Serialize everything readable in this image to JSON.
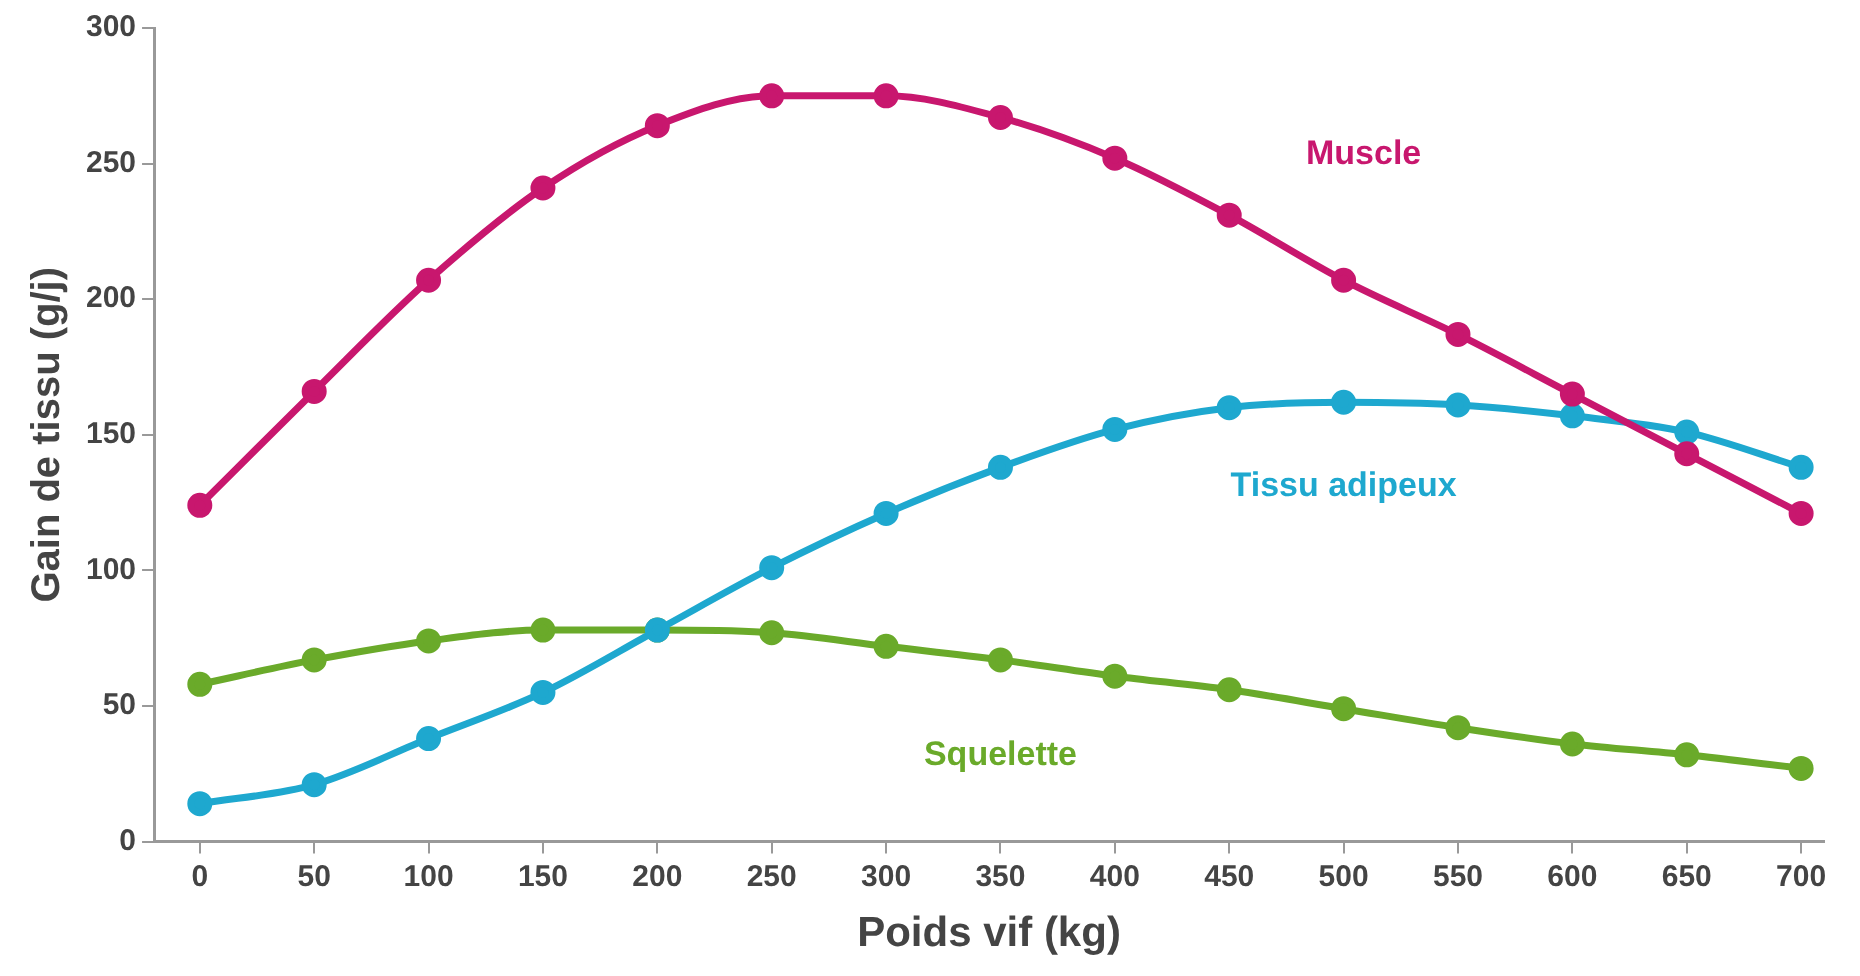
{
  "chart_data": {
    "type": "line",
    "xlabel": "Poids vif (kg)",
    "ylabel": "Gain de tissu (g/j)",
    "x": [
      0,
      50,
      100,
      150,
      200,
      250,
      300,
      350,
      400,
      450,
      500,
      550,
      600,
      650,
      700
    ],
    "xlim": [
      -20,
      710
    ],
    "xticks": [
      0,
      50,
      100,
      150,
      200,
      250,
      300,
      350,
      400,
      450,
      500,
      550,
      600,
      650,
      700
    ],
    "ylim": [
      0,
      300
    ],
    "yticks": [
      0,
      50,
      100,
      150,
      200,
      250,
      300
    ],
    "grid": false,
    "legend": false,
    "marker": "circle",
    "line_style": "solid",
    "series": [
      {
        "name": "Muscle",
        "color": "#c8176e",
        "values": [
          124,
          166,
          207,
          241,
          264,
          275,
          275,
          267,
          252,
          231,
          207,
          187,
          165,
          143,
          121
        ]
      },
      {
        "name": "Tissu adipeux",
        "color": "#1ea8cf",
        "values": [
          14,
          21,
          38,
          55,
          78,
          101,
          121,
          138,
          152,
          160,
          162,
          161,
          157,
          151,
          138
        ]
      },
      {
        "name": "Squelette",
        "color": "#6aaa2a",
        "values": [
          58,
          67,
          74,
          78,
          78,
          77,
          72,
          67,
          61,
          56,
          49,
          42,
          36,
          32,
          27
        ]
      }
    ]
  }
}
